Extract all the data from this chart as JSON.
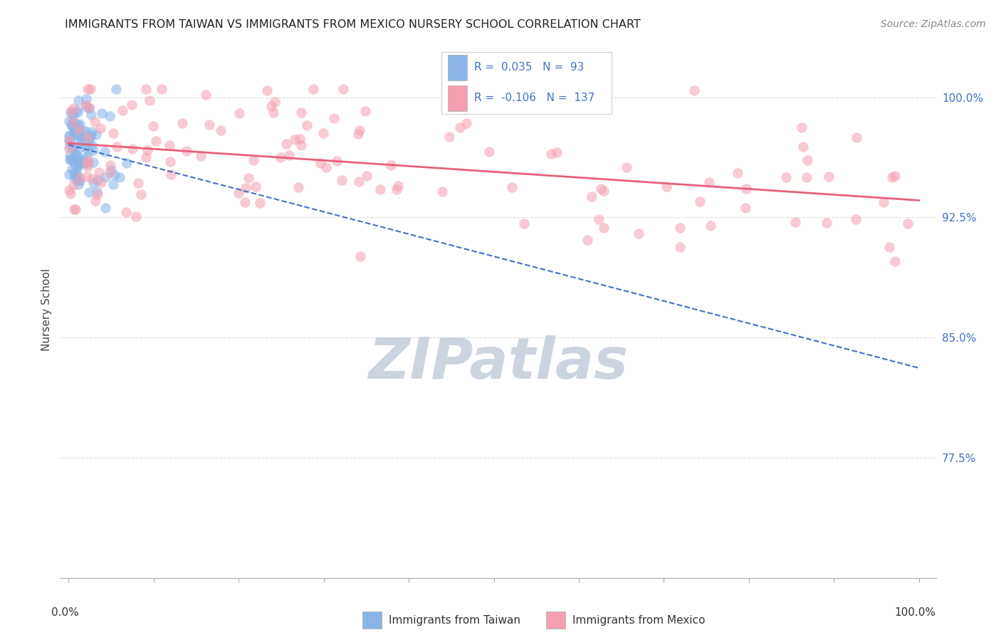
{
  "title": "IMMIGRANTS FROM TAIWAN VS IMMIGRANTS FROM MEXICO NURSERY SCHOOL CORRELATION CHART",
  "source": "Source: ZipAtlas.com",
  "ylabel": "Nursery School",
  "ytick_labels": [
    "100.0%",
    "92.5%",
    "85.0%",
    "77.5%"
  ],
  "ytick_values": [
    1.0,
    0.925,
    0.85,
    0.775
  ],
  "xlim": [
    0.0,
    1.0
  ],
  "ylim": [
    0.7,
    1.035
  ],
  "taiwan_R": 0.035,
  "taiwan_N": 93,
  "mexico_R": -0.106,
  "mexico_N": 137,
  "taiwan_color": "#8ab4e8",
  "mexico_color": "#f4a0b0",
  "taiwan_line_color": "#4472c4",
  "mexico_line_color": "#e8607a",
  "background_color": "#ffffff",
  "grid_color": "#dddddd",
  "title_color": "#222222",
  "legend_color": "#4472c4",
  "watermark_color": "#ccd4e0",
  "tick_color": "#4472c4"
}
